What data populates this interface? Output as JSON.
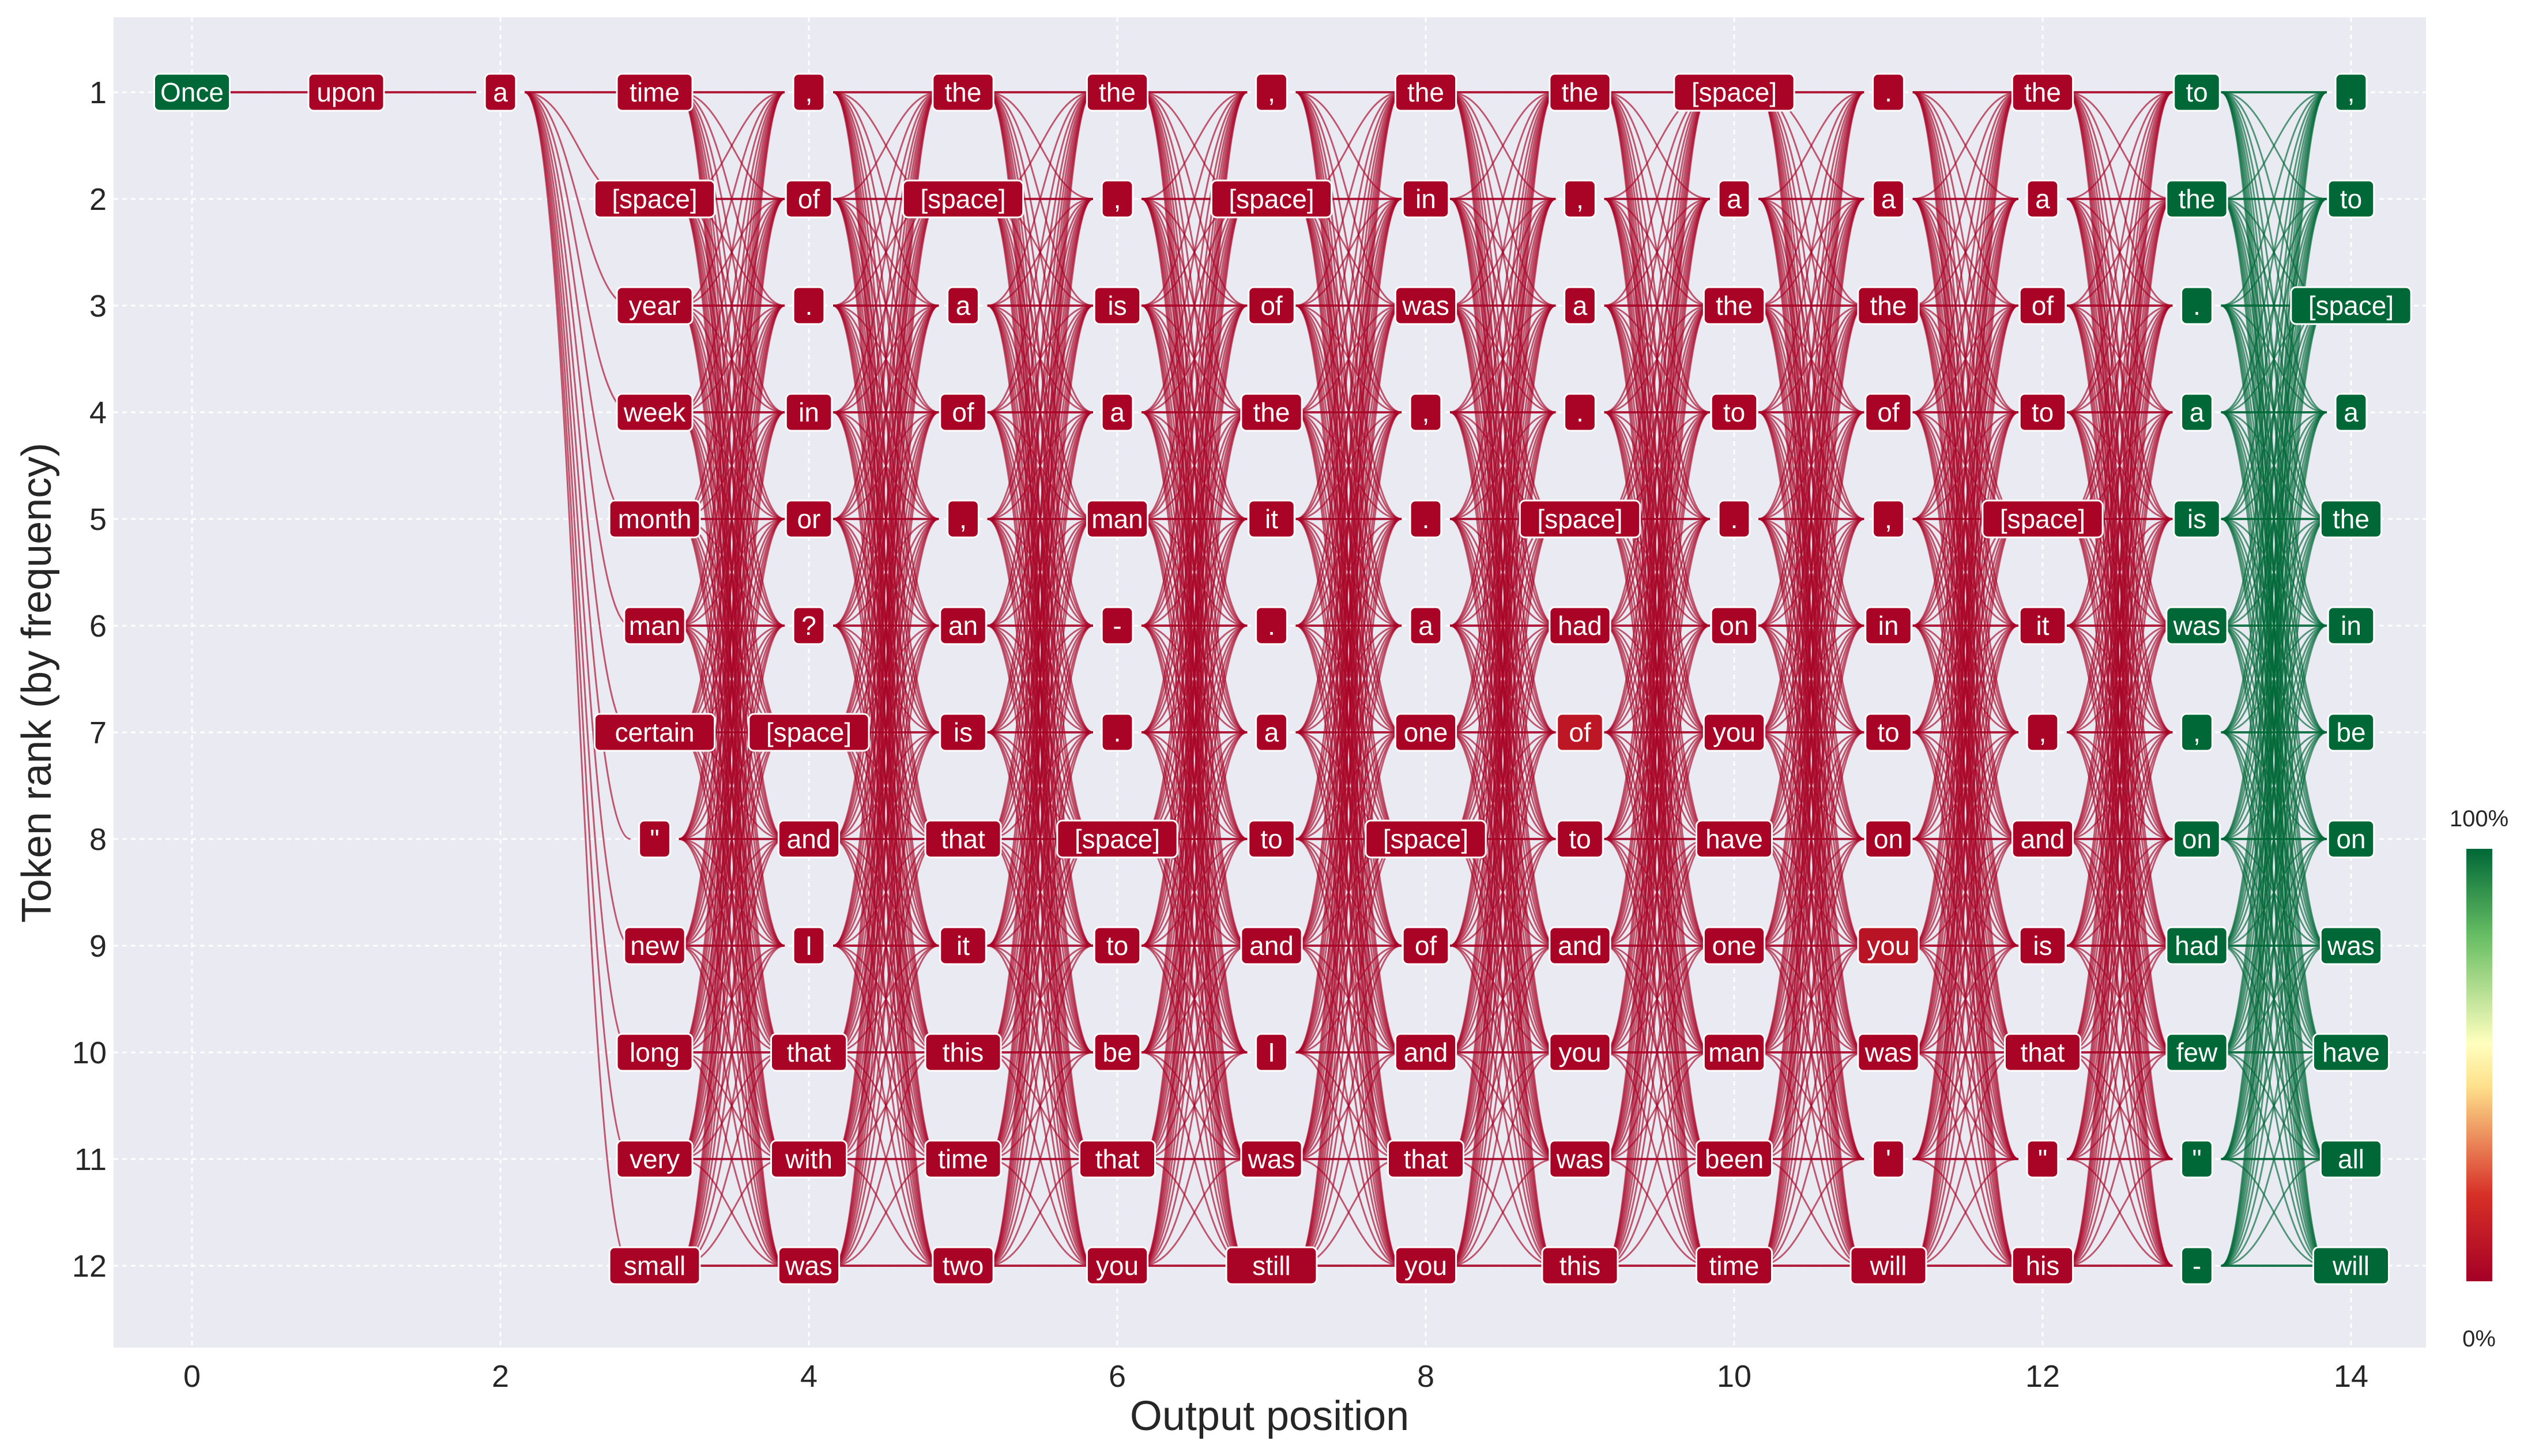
{
  "chart_data": {
    "type": "scatter",
    "title": "",
    "xlabel": "Output position",
    "ylabel": "Token rank (by frequency)",
    "xlim": [
      -0.5,
      14.5
    ],
    "ylim": [
      13.5,
      0.3
    ],
    "x_ticks": [
      0,
      2,
      4,
      6,
      8,
      10,
      12,
      14
    ],
    "y_ticks": [
      1,
      2,
      3,
      4,
      5,
      6,
      7,
      8,
      9,
      10,
      11,
      12
    ],
    "grid": true,
    "colorbar": {
      "top_label": "100%",
      "bottom_label": "0%",
      "colors": [
        "#a50026",
        "#d73027",
        "#fee08b",
        "#ffffbf",
        "#66bd63",
        "#006837"
      ]
    },
    "columns": [
      {
        "x": 0,
        "tokens": [
          "Once"
        ],
        "prob": [
          1.0
        ]
      },
      {
        "x": 1,
        "tokens": [
          "upon"
        ],
        "prob": [
          0.02
        ]
      },
      {
        "x": 2,
        "tokens": [
          "a"
        ],
        "prob": [
          0.02
        ]
      },
      {
        "x": 3,
        "tokens": [
          "time",
          "[space]",
          "year",
          "week",
          "month",
          "man",
          "certain",
          "\"",
          "new",
          "long",
          "very",
          "small"
        ],
        "prob": [
          0.02,
          0.02,
          0.02,
          0.02,
          0.02,
          0.02,
          0.02,
          0.02,
          0.02,
          0.02,
          0.02,
          0.02
        ]
      },
      {
        "x": 4,
        "tokens": [
          ",",
          "of",
          ".",
          "in",
          "or",
          "?",
          "[space]",
          "and",
          "I",
          "that",
          "with",
          "was"
        ],
        "prob": [
          0.02,
          0.02,
          0.02,
          0.02,
          0.02,
          0.02,
          0.02,
          0.02,
          0.02,
          0.02,
          0.02,
          0.02
        ]
      },
      {
        "x": 5,
        "tokens": [
          "the",
          "[space]",
          "a",
          "of",
          ",",
          "an",
          "is",
          "that",
          "it",
          "this",
          "time",
          "two"
        ],
        "prob": [
          0.02,
          0.02,
          0.02,
          0.02,
          0.02,
          0.02,
          0.02,
          0.02,
          0.02,
          0.02,
          0.02,
          0.02
        ]
      },
      {
        "x": 6,
        "tokens": [
          "the",
          ",",
          "is",
          "a",
          "man",
          "-",
          ".",
          "[space]",
          "to",
          "be",
          "that",
          "you"
        ],
        "prob": [
          0.02,
          0.02,
          0.02,
          0.02,
          0.02,
          0.02,
          0.02,
          0.02,
          0.02,
          0.02,
          0.02,
          0.02
        ]
      },
      {
        "x": 7,
        "tokens": [
          ",",
          "[space]",
          "of",
          "the",
          "it",
          ".",
          "a",
          "to",
          "and",
          "I",
          "was",
          "still"
        ],
        "prob": [
          0.02,
          0.02,
          0.02,
          0.02,
          0.02,
          0.02,
          0.02,
          0.02,
          0.02,
          0.02,
          0.02,
          0.02
        ]
      },
      {
        "x": 8,
        "tokens": [
          "the",
          "in",
          "was",
          ",",
          ".",
          "a",
          "one",
          "[space]",
          "of",
          "and",
          "that",
          "you"
        ],
        "prob": [
          0.02,
          0.02,
          0.02,
          0.02,
          0.02,
          0.02,
          0.02,
          0.02,
          0.02,
          0.02,
          0.02,
          0.02
        ]
      },
      {
        "x": 9,
        "tokens": [
          "the",
          ",",
          "a",
          ".",
          "[space]",
          "had",
          "of",
          "to",
          "and",
          "you",
          "was",
          "this"
        ],
        "prob": [
          0.02,
          0.02,
          0.02,
          0.02,
          0.02,
          0.02,
          0.12,
          0.02,
          0.02,
          0.02,
          0.02,
          0.02
        ]
      },
      {
        "x": 10,
        "tokens": [
          "[space]",
          "a",
          "the",
          "to",
          ".",
          "on",
          "you",
          "have",
          "one",
          "man",
          "been",
          "time"
        ],
        "prob": [
          0.02,
          0.02,
          0.02,
          0.02,
          0.02,
          0.02,
          0.02,
          0.02,
          0.02,
          0.02,
          0.02,
          0.02
        ]
      },
      {
        "x": 11,
        "tokens": [
          ".",
          "a",
          "the",
          "of",
          ",",
          "in",
          "to",
          "on",
          "you",
          "was",
          "'",
          "will"
        ],
        "prob": [
          0.02,
          0.02,
          0.02,
          0.02,
          0.02,
          0.02,
          0.02,
          0.02,
          0.1,
          0.02,
          0.02,
          0.02
        ]
      },
      {
        "x": 12,
        "tokens": [
          "the",
          "a",
          "of",
          "to",
          "[space]",
          "it",
          ",",
          "and",
          "is",
          "that",
          "\"",
          "his"
        ],
        "prob": [
          0.02,
          0.02,
          0.02,
          0.02,
          0.02,
          0.02,
          0.02,
          0.02,
          0.02,
          0.02,
          0.02,
          0.02
        ]
      },
      {
        "x": 13,
        "tokens": [
          "to",
          "the",
          ".",
          "a",
          "is",
          "was",
          ",",
          "on",
          "had",
          "few",
          "\"",
          "-"
        ],
        "prob": [
          1.0,
          1.0,
          1.0,
          1.0,
          1.0,
          1.0,
          1.0,
          1.0,
          1.0,
          1.0,
          1.0,
          1.0
        ]
      },
      {
        "x": 14,
        "tokens": [
          ",",
          "to",
          "[space]",
          "a",
          "the",
          "in",
          "be",
          "on",
          "was",
          "have",
          "all",
          "will"
        ],
        "prob": [
          1.0,
          1.0,
          1.0,
          1.0,
          1.0,
          1.0,
          1.0,
          1.0,
          1.0,
          1.0,
          1.0,
          1.0
        ]
      }
    ]
  }
}
